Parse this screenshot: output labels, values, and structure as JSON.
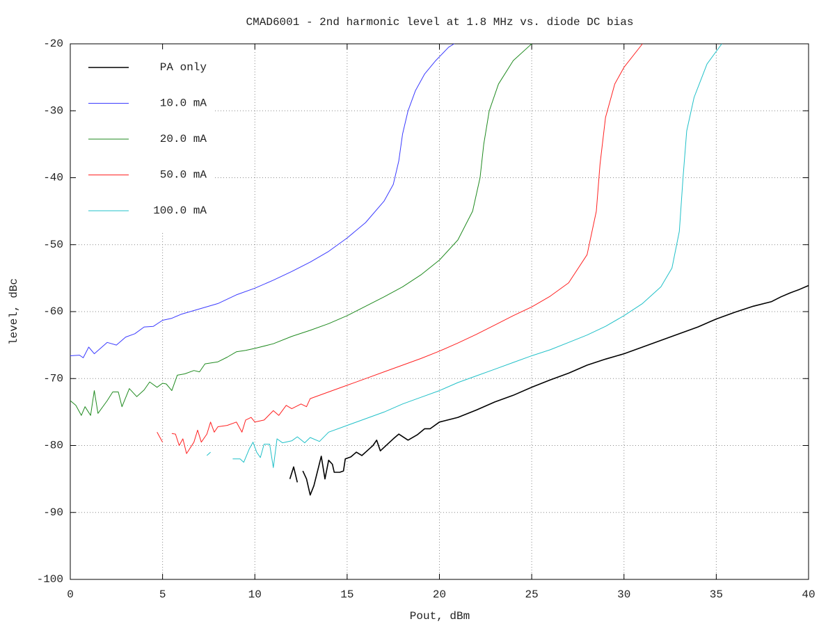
{
  "chart_data": {
    "type": "line",
    "title": "CMAD6001 - 2nd harmonic level at 1.8 MHz vs. diode DC bias",
    "x_label": "Pout, dBm",
    "y_label": "level, dBc",
    "xlim": [
      0,
      40
    ],
    "xticks": [
      0,
      5,
      10,
      15,
      20,
      25,
      30,
      35,
      40
    ],
    "ylim": [
      -100,
      -20
    ],
    "yticks": [
      -100,
      -90,
      -80,
      -70,
      -60,
      -50,
      -40,
      -30,
      -20
    ],
    "grid": true,
    "legend": "top-left",
    "series": [
      {
        "name": "PA only",
        "color": "#000000",
        "x": [
          11.9,
          12.1,
          12.3,
          12.45,
          12.6,
          12.8,
          13,
          13.2,
          13.6,
          13.8,
          14,
          14.2,
          14.3,
          14.6,
          14.8,
          14.9,
          15.2,
          15.5,
          15.8,
          16.2,
          16.4,
          16.6,
          16.8,
          17.5,
          17.8,
          18.3,
          18.8,
          19.2,
          19.5,
          20,
          21,
          22,
          23,
          24,
          25,
          26,
          27,
          28,
          29,
          30,
          31,
          32,
          33,
          34,
          35,
          36,
          37,
          38,
          38.5,
          39,
          39.5,
          40
        ],
        "values": [
          -85,
          -83.2,
          -85.5,
          null,
          -83.8,
          -85,
          -87.4,
          -86,
          -81.6,
          -85,
          -82.2,
          -82.8,
          -84,
          -84,
          -83.8,
          -82,
          -81.7,
          -81,
          -81.5,
          -80.5,
          -80,
          -79.2,
          -80.8,
          -79,
          -78.3,
          -79.2,
          -78.4,
          -77.5,
          -77.5,
          -76.5,
          -75.8,
          -74.7,
          -73.5,
          -72.5,
          -71.3,
          -70.2,
          -69.2,
          -68,
          -67.1,
          -66.3,
          -65.3,
          -64.3,
          -63.3,
          -62.3,
          -61.1,
          -60.1,
          -59.2,
          -58.5,
          -57.8,
          -57.2,
          -56.7,
          -56.1
        ]
      },
      {
        "name": "10.0 mA",
        "color": "#3a3aff",
        "x": [
          0,
          0.5,
          0.7,
          1,
          1.3,
          2,
          2.5,
          3,
          3.5,
          4,
          4.5,
          5,
          5.5,
          6,
          7,
          8,
          9,
          10,
          11,
          12,
          13,
          14,
          15,
          16,
          17,
          17.5,
          17.8,
          18,
          18.3,
          18.7,
          19.2,
          19.8,
          20.5,
          20.8
        ],
        "values": [
          -66.6,
          -66.5,
          -66.9,
          -65.3,
          -66.3,
          -64.6,
          -65,
          -63.8,
          -63.3,
          -62.3,
          -62.2,
          -61.3,
          -61,
          -60.4,
          -59.6,
          -58.8,
          -57.5,
          -56.5,
          -55.3,
          -54,
          -52.6,
          -51,
          -49,
          -46.7,
          -43.5,
          -41,
          -37.5,
          -33.5,
          -30,
          -27,
          -24.5,
          -22.5,
          -20.5,
          -20
        ]
      },
      {
        "name": "20.0 mA",
        "color": "#1f8a1f",
        "x": [
          0,
          0.3,
          0.6,
          0.8,
          1.1,
          1.3,
          1.5,
          2,
          2.3,
          2.6,
          2.8,
          3.2,
          3.6,
          4,
          4.3,
          4.7,
          5,
          5.2,
          5.5,
          5.8,
          6.2,
          6.7,
          7,
          7.3,
          8,
          8.5,
          9,
          9.5,
          10,
          11,
          12,
          13,
          14,
          15,
          16,
          17,
          18,
          19,
          20,
          21,
          21.8,
          22.2,
          22.4,
          22.7,
          23.2,
          24,
          25
        ],
        "values": [
          -73.3,
          -74,
          -75.5,
          -74.2,
          -75.5,
          -71.8,
          -75.2,
          -73.3,
          -72,
          -72,
          -74.2,
          -71.5,
          -72.7,
          -71.7,
          -70.5,
          -71.3,
          -70.7,
          -70.8,
          -71.8,
          -69.5,
          -69.3,
          -68.8,
          -69,
          -67.8,
          -67.5,
          -66.8,
          -66,
          -65.8,
          -65.5,
          -64.8,
          -63.7,
          -62.8,
          -61.8,
          -60.6,
          -59.2,
          -57.8,
          -56.3,
          -54.5,
          -52.3,
          -49.3,
          -45,
          -40,
          -35,
          -30,
          -26,
          -22.5,
          -20
        ]
      },
      {
        "name": "50.0 mA",
        "color": "#ff2020",
        "x": [
          4.7,
          5,
          5.2,
          5.5,
          5.7,
          5.9,
          6.1,
          6.3,
          6.7,
          6.9,
          7.1,
          7.4,
          7.6,
          7.8,
          8,
          8.5,
          9,
          9.3,
          9.5,
          9.8,
          10,
          10.5,
          11,
          11.3,
          11.7,
          12,
          12.5,
          12.8,
          13,
          14,
          15,
          16,
          17,
          18,
          19,
          20,
          21,
          22,
          23,
          24,
          25,
          26,
          27,
          28,
          28.5,
          28.7,
          29,
          29.5,
          30,
          31
        ],
        "values": [
          -78,
          -79.5,
          null,
          -78.2,
          -78.3,
          -80,
          -79,
          -81.2,
          -79.5,
          -77.7,
          -79.5,
          -78.3,
          -76.5,
          -78,
          -77.2,
          -77,
          -76.5,
          -78,
          -76.2,
          -75.8,
          -76.5,
          -76.2,
          -74.8,
          -75.5,
          -74,
          -74.5,
          -73.8,
          -74.2,
          -73,
          -72,
          -71,
          -70,
          -69,
          -68,
          -67,
          -65.9,
          -64.7,
          -63.4,
          -62,
          -60.6,
          -59.3,
          -57.7,
          -55.7,
          -51.5,
          -45,
          -38,
          -31,
          -26,
          -23.5,
          -20
        ]
      },
      {
        "name": "100.0 mA",
        "color": "#20c0c8",
        "x": [
          7.4,
          7.6,
          8.2,
          8.8,
          9.2,
          9.4,
          9.7,
          9.9,
          10.1,
          10.3,
          10.5,
          10.8,
          11,
          11.2,
          11.5,
          12,
          12.3,
          12.7,
          13,
          13.5,
          14,
          15,
          16,
          17,
          18,
          19,
          20,
          21,
          22,
          23,
          24,
          25,
          26,
          27,
          28,
          29,
          30,
          31,
          32,
          32.6,
          33,
          33.2,
          33.4,
          33.8,
          34.5,
          35.3
        ],
        "values": [
          -81.5,
          -81,
          null,
          -82,
          -82,
          -82.5,
          -80.5,
          -79.5,
          -81,
          -81.8,
          -79.8,
          -79.8,
          -83.3,
          -79,
          -79.6,
          -79.3,
          -78.7,
          -79.6,
          -78.8,
          -79.4,
          -78,
          -77,
          -76,
          -75,
          -73.8,
          -72.8,
          -71.8,
          -70.6,
          -69.6,
          -68.6,
          -67.6,
          -66.6,
          -65.7,
          -64.6,
          -63.5,
          -62.2,
          -60.6,
          -58.8,
          -56.3,
          -53.5,
          -48,
          -40,
          -33,
          -28,
          -23,
          -20
        ]
      }
    ]
  }
}
